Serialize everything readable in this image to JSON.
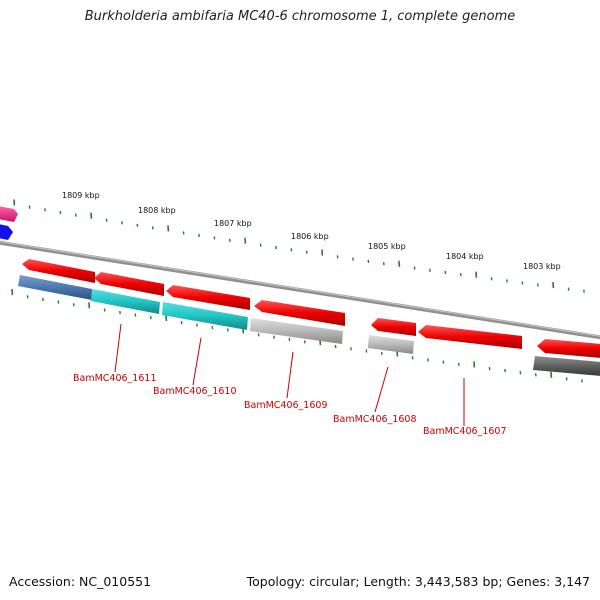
{
  "title": "Burkholderia ambifaria MC40-6 chromosome 1, complete genome",
  "footer": {
    "accession": "Accession: NC_010551",
    "summary": "Topology: circular; Length: 3,443,583 bp; Genes: 3,147"
  },
  "colors": {
    "gene_forward": "#ee1111",
    "backbone": "#808080",
    "tick": "#2a7a2a",
    "label": "#cc0000",
    "teal": "#22c4c4",
    "steel_blue": "#4a78b0",
    "light_gray": "#b8b8b8",
    "dark_gray": "#606060",
    "magenta": "#ee2288",
    "blue": "#1111ee"
  },
  "scale_labels": [
    "1809 kbp",
    "1808 kbp",
    "1807 kbp",
    "1806 kbp",
    "1805 kbp",
    "1804 kbp",
    "1803 kbp"
  ],
  "gene_labels": [
    "BamMC406_1611",
    "BamMC406_1610",
    "BamMC406_1609",
    "BamMC406_1608",
    "BamMC406_1607"
  ]
}
